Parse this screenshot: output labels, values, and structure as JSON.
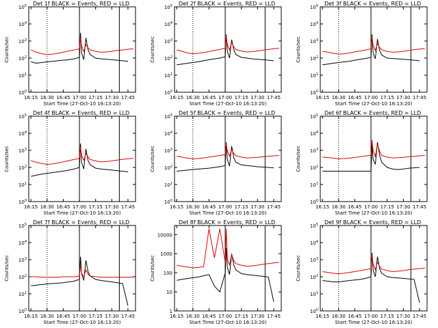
{
  "panel_count": 9,
  "shared": {
    "ylabel": "Counts/sec",
    "xlabel": "Start Time (27-Oct-10 16:13:20)",
    "x_ticks": [
      "16:15",
      "16:30",
      "16:45",
      "17:00",
      "17:15",
      "17:30",
      "17:45"
    ],
    "series_colors": {
      "events": "#000000",
      "lld": "#dd0000"
    }
  },
  "chart_data": [
    {
      "type": "line",
      "title": "Det 1f BLACK = Events, RED = LLD",
      "ylabel": "Counts/sec",
      "xlabel": "Start Time (27-Oct-10 16:13:20)",
      "y_scale": "log",
      "yticks": [
        "10^0",
        "10^1",
        "10^2",
        "10^3",
        "10^4",
        "10^5"
      ],
      "ylim": [
        1,
        100000
      ],
      "xlim": [
        "16:13",
        "17:52"
      ],
      "x": [
        "16:15",
        "16:20",
        "16:25",
        "16:30",
        "16:35",
        "16:40",
        "16:45",
        "16:50",
        "16:55",
        "17:00",
        "17:01",
        "17:02",
        "17:04",
        "17:06",
        "17:08",
        "17:10",
        "17:15",
        "17:20",
        "17:25",
        "17:30",
        "17:35",
        "17:40",
        "17:45",
        "17:50"
      ],
      "series": [
        {
          "values": [
            60,
            50,
            55,
            60,
            65,
            70,
            75,
            80,
            90,
            110,
            3000,
            200,
            80,
            1500,
            300,
            160,
            100,
            90,
            85,
            80,
            75,
            70,
            65,
            null
          ]
        },
        {
          "values": [
            300,
            220,
            180,
            160,
            170,
            190,
            220,
            260,
            300,
            350,
            1500,
            500,
            250,
            600,
            400,
            300,
            250,
            220,
            230,
            250,
            280,
            300,
            330,
            350
          ]
        }
      ]
    },
    {
      "type": "line",
      "title": "Det 2f BLACK = Events, RED = LLD",
      "ylabel": "Counts/sec",
      "xlabel": "Start Time (27-Oct-10 16:13:20)",
      "y_scale": "log",
      "yticks": [
        "10^0",
        "10^1",
        "10^2",
        "10^3",
        "10^4",
        "10^5"
      ],
      "ylim": [
        1,
        100000
      ],
      "xlim": [
        "16:13",
        "17:52"
      ],
      "x": [
        "16:15",
        "16:20",
        "16:25",
        "16:30",
        "16:35",
        "16:40",
        "16:45",
        "16:50",
        "16:55",
        "17:00",
        "17:01",
        "17:02",
        "17:04",
        "17:06",
        "17:08",
        "17:10",
        "17:15",
        "17:20",
        "17:25",
        "17:30",
        "17:35",
        "17:40",
        "17:45",
        "17:50"
      ],
      "series": [
        {
          "values": [
            40,
            45,
            50,
            55,
            60,
            70,
            80,
            90,
            100,
            120,
            2500,
            250,
            100,
            1200,
            300,
            160,
            110,
            100,
            90,
            85,
            80,
            75,
            70,
            null
          ]
        },
        {
          "values": [
            300,
            250,
            200,
            180,
            190,
            210,
            240,
            280,
            320,
            380,
            2000,
            600,
            300,
            800,
            450,
            320,
            260,
            230,
            240,
            260,
            290,
            320,
            350,
            380
          ]
        }
      ]
    },
    {
      "type": "line",
      "title": "Det 3f BLACK = Events, RED = LLD",
      "ylabel": "Counts/sec",
      "xlabel": "Start Time (27-Oct-10 16:13:20)",
      "y_scale": "log",
      "yticks": [
        "10^0",
        "10^1",
        "10^2",
        "10^3",
        "10^4",
        "10^5"
      ],
      "ylim": [
        1,
        100000
      ],
      "xlim": [
        "16:13",
        "17:52"
      ],
      "x": [
        "16:15",
        "16:20",
        "16:25",
        "16:30",
        "16:35",
        "16:40",
        "16:45",
        "16:50",
        "16:55",
        "17:00",
        "17:01",
        "17:02",
        "17:04",
        "17:06",
        "17:08",
        "17:10",
        "17:15",
        "17:20",
        "17:25",
        "17:30",
        "17:35",
        "17:40",
        "17:45",
        "17:50"
      ],
      "series": [
        {
          "values": [
            40,
            45,
            50,
            55,
            60,
            65,
            75,
            85,
            95,
            110,
            2500,
            200,
            90,
            1300,
            280,
            150,
            100,
            95,
            90,
            85,
            80,
            75,
            70,
            null
          ]
        },
        {
          "values": [
            250,
            220,
            190,
            170,
            180,
            200,
            230,
            260,
            300,
            350,
            1800,
            550,
            280,
            700,
            420,
            300,
            250,
            220,
            230,
            250,
            280,
            310,
            340,
            360
          ]
        }
      ]
    },
    {
      "type": "line",
      "title": "Det 4f BLACK = Events, RED = LLD",
      "ylabel": "Counts/sec",
      "xlabel": "Start Time (27-Oct-10 16:13:20)",
      "y_scale": "log",
      "yticks": [
        "10^0",
        "10^1",
        "10^2",
        "10^3",
        "10^4",
        "10^5"
      ],
      "ylim": [
        1,
        100000
      ],
      "xlim": [
        "16:13",
        "17:52"
      ],
      "x": [
        "16:15",
        "16:20",
        "16:25",
        "16:30",
        "16:35",
        "16:40",
        "16:45",
        "16:50",
        "16:55",
        "17:00",
        "17:01",
        "17:02",
        "17:04",
        "17:06",
        "17:08",
        "17:10",
        "17:15",
        "17:20",
        "17:25",
        "17:30",
        "17:35",
        "17:40",
        "17:45",
        "17:50"
      ],
      "series": [
        {
          "values": [
            30,
            35,
            40,
            45,
            50,
            55,
            60,
            70,
            80,
            100,
            2500,
            200,
            80,
            1200,
            250,
            140,
            90,
            80,
            75,
            70,
            65,
            60,
            55,
            null
          ]
        },
        {
          "values": [
            250,
            200,
            170,
            150,
            160,
            180,
            210,
            250,
            290,
            340,
            1600,
            500,
            260,
            650,
            400,
            290,
            240,
            210,
            220,
            240,
            270,
            300,
            320,
            340
          ]
        }
      ]
    },
    {
      "type": "line",
      "title": "Det 5f BLACK = Events, RED = LLD",
      "ylabel": "Counts/sec",
      "xlabel": "Start Time (27-Oct-10 16:13:20)",
      "y_scale": "log",
      "yticks": [
        "10^0",
        "10^1",
        "10^2",
        "10^3",
        "10^4",
        "10^5"
      ],
      "ylim": [
        1,
        100000
      ],
      "xlim": [
        "16:13",
        "17:52"
      ],
      "x": [
        "16:15",
        "16:20",
        "16:25",
        "16:30",
        "16:35",
        "16:40",
        "16:45",
        "16:50",
        "16:55",
        "17:00",
        "17:01",
        "17:02",
        "17:04",
        "17:06",
        "17:08",
        "17:10",
        "17:15",
        "17:20",
        "17:25",
        "17:30",
        "17:35",
        "17:40",
        "17:45",
        "17:50"
      ],
      "series": [
        {
          "values": [
            60,
            65,
            70,
            75,
            80,
            85,
            90,
            100,
            110,
            130,
            3000,
            280,
            120,
            1800,
            350,
            200,
            140,
            130,
            120,
            110,
            105,
            100,
            95,
            null
          ]
        },
        {
          "values": [
            450,
            400,
            350,
            320,
            330,
            360,
            400,
            450,
            500,
            560,
            2500,
            900,
            450,
            1100,
            650,
            480,
            400,
            360,
            370,
            390,
            420,
            450,
            480,
            500
          ]
        }
      ]
    },
    {
      "type": "line",
      "title": "Det 6f BLACK = Events, RED = LLD",
      "ylabel": "Counts/sec",
      "xlabel": "Start Time (27-Oct-10 16:13:20)",
      "y_scale": "log",
      "yticks": [
        "10^0",
        "10^1",
        "10^2",
        "10^3",
        "10^4",
        "10^5"
      ],
      "ylim": [
        1,
        100000
      ],
      "xlim": [
        "16:13",
        "17:52"
      ],
      "x": [
        "16:15",
        "16:20",
        "16:25",
        "16:30",
        "16:35",
        "16:40",
        "16:45",
        "16:50",
        "16:55",
        "17:00",
        "17:01",
        "17:02",
        "17:04",
        "17:06",
        "17:08",
        "17:10",
        "17:15",
        "17:20",
        "17:25",
        "17:30",
        "17:35",
        "17:40",
        "17:45",
        "17:50"
      ],
      "series": [
        {
          "values": [
            60,
            60,
            60,
            60,
            60,
            60,
            60,
            60,
            60,
            60,
            2000,
            300,
            150,
            3000,
            500,
            200,
            100,
            80,
            75,
            80,
            90,
            95,
            100,
            null
          ]
        },
        {
          "values": [
            400,
            380,
            350,
            320,
            330,
            350,
            380,
            420,
            470,
            530,
            4000,
            900,
            450,
            2200,
            900,
            500,
            400,
            360,
            370,
            390,
            420,
            450,
            480,
            500
          ]
        }
      ]
    },
    {
      "type": "line",
      "title": "Det 7f BLACK = Events, RED = LLD",
      "ylabel": "Counts/sec",
      "xlabel": "Start Time (27-Oct-10 16:13:20)",
      "y_scale": "log",
      "yticks": [
        "10^0",
        "10^1",
        "10^2",
        "10^3",
        "10^4",
        "10^5"
      ],
      "ylim": [
        1,
        100000
      ],
      "xlim": [
        "16:13",
        "17:52"
      ],
      "x": [
        "16:15",
        "16:20",
        "16:25",
        "16:30",
        "16:35",
        "16:40",
        "16:45",
        "16:50",
        "16:55",
        "17:00",
        "17:01",
        "17:02",
        "17:04",
        "17:06",
        "17:08",
        "17:10",
        "17:15",
        "17:20",
        "17:25",
        "17:30",
        "17:35",
        "17:40",
        "17:45",
        "17:50"
      ],
      "series": [
        {
          "values": [
            30,
            32,
            35,
            38,
            40,
            42,
            45,
            50,
            55,
            70,
            1500,
            150,
            60,
            900,
            200,
            110,
            70,
            60,
            55,
            50,
            45,
            40,
            2,
            null
          ]
        },
        {
          "values": [
            100,
            100,
            95,
            95,
            95,
            95,
            100,
            100,
            100,
            110,
            500,
            160,
            100,
            250,
            140,
            110,
            100,
            95,
            95,
            95,
            95,
            95,
            95,
            95
          ]
        }
      ]
    },
    {
      "type": "line",
      "title": "Det 8f BLACK = Events, RED = LLD",
      "ylabel": "Counts/sec",
      "xlabel": "Start Time (27-Oct-10 16:13:20)",
      "y_scale": "log",
      "yticks": [
        "1",
        "10",
        "100",
        "1000",
        "10000"
      ],
      "ylim": [
        1,
        30000
      ],
      "xlim": [
        "16:13",
        "17:52"
      ],
      "x": [
        "16:15",
        "16:20",
        "16:25",
        "16:30",
        "16:35",
        "16:40",
        "16:45",
        "16:50",
        "16:55",
        "17:00",
        "17:01",
        "17:02",
        "17:04",
        "17:06",
        "17:08",
        "17:10",
        "17:15",
        "17:20",
        "17:25",
        "17:30",
        "17:35",
        "17:40",
        "17:45",
        "17:50"
      ],
      "series": [
        {
          "values": [
            40,
            45,
            50,
            55,
            60,
            70,
            80,
            20,
            10,
            100,
            2000,
            200,
            80,
            1000,
            250,
            140,
            90,
            80,
            75,
            70,
            65,
            60,
            3,
            null
          ]
        },
        {
          "values": [
            250,
            220,
            200,
            180,
            190,
            210,
            20000,
            600,
            20000,
            350,
            20000,
            500,
            260,
            900,
            420,
            300,
            250,
            220,
            230,
            250,
            280,
            300,
            330,
            350
          ]
        }
      ]
    },
    {
      "type": "line",
      "title": "Det 9f BLACK = Events, RED = LLD",
      "ylabel": "Counts/sec",
      "xlabel": "Start Time (27-Oct-10 16:13:20)",
      "y_scale": "log",
      "yticks": [
        "10^0",
        "10^1",
        "10^2",
        "10^3",
        "10^4",
        "10^5"
      ],
      "ylim": [
        1,
        100000
      ],
      "xlim": [
        "16:13",
        "17:52"
      ],
      "x": [
        "16:15",
        "16:20",
        "16:25",
        "16:30",
        "16:35",
        "16:40",
        "16:45",
        "16:50",
        "16:55",
        "17:00",
        "17:01",
        "17:02",
        "17:04",
        "17:06",
        "17:08",
        "17:10",
        "17:15",
        "17:20",
        "17:25",
        "17:30",
        "17:35",
        "17:40",
        "17:45",
        "17:50"
      ],
      "series": [
        {
          "values": [
            60,
            55,
            50,
            50,
            55,
            60,
            65,
            70,
            80,
            100,
            2500,
            250,
            100,
            1500,
            300,
            160,
            100,
            90,
            85,
            80,
            75,
            70,
            3,
            null
          ]
        },
        {
          "values": [
            200,
            180,
            160,
            150,
            160,
            180,
            200,
            230,
            260,
            300,
            1800,
            550,
            260,
            700,
            400,
            280,
            230,
            200,
            210,
            230,
            260,
            280,
            300,
            320
          ]
        }
      ]
    }
  ]
}
